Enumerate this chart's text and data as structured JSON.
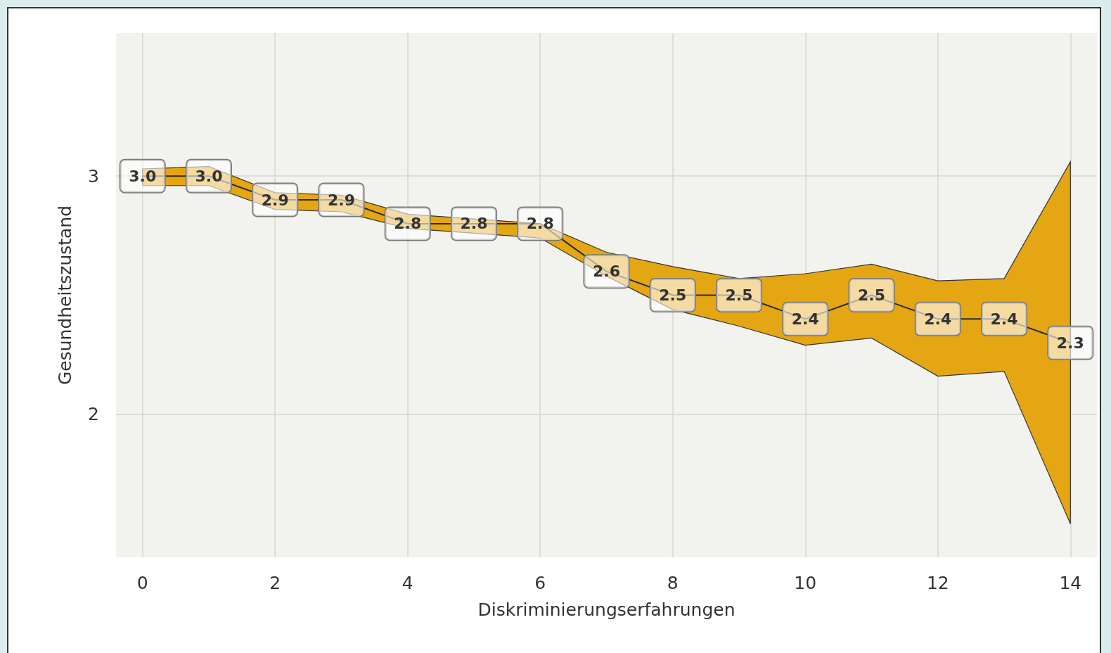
{
  "chart_data": {
    "type": "line",
    "xlabel": "Diskriminierungserfahrungen",
    "ylabel": "Gesundheitszustand",
    "x": [
      0,
      1,
      2,
      3,
      4,
      5,
      6,
      7,
      8,
      9,
      10,
      11,
      12,
      13,
      14
    ],
    "series": [
      {
        "color": "#2b2b2b",
        "values": [
          3.0,
          3.0,
          2.9,
          2.9,
          2.8,
          2.8,
          2.8,
          2.6,
          2.5,
          2.5,
          2.4,
          2.5,
          2.4,
          2.4,
          2.3
        ],
        "value_labels": [
          "3.0",
          "3.0",
          "2.9",
          "2.9",
          "2.8",
          "2.8",
          "2.8",
          "2.6",
          "2.5",
          "2.5",
          "2.4",
          "2.5",
          "2.4",
          "2.4",
          "2.3"
        ],
        "lower": [
          2.96,
          2.96,
          2.86,
          2.85,
          2.78,
          2.76,
          2.74,
          2.58,
          2.44,
          2.37,
          2.29,
          2.32,
          2.16,
          2.18,
          1.54
        ],
        "upper": [
          3.03,
          3.04,
          2.93,
          2.92,
          2.84,
          2.82,
          2.8,
          2.68,
          2.62,
          2.57,
          2.59,
          2.63,
          2.56,
          2.57,
          3.06
        ]
      }
    ],
    "xlim": [
      -0.4,
      14.4
    ],
    "xticks": [
      0,
      2,
      4,
      6,
      8,
      10,
      12,
      14
    ],
    "ylim": [
      1.4,
      3.6
    ],
    "yticks": [
      2,
      3
    ],
    "grid": true,
    "marker": "none",
    "line_style": "solid"
  }
}
